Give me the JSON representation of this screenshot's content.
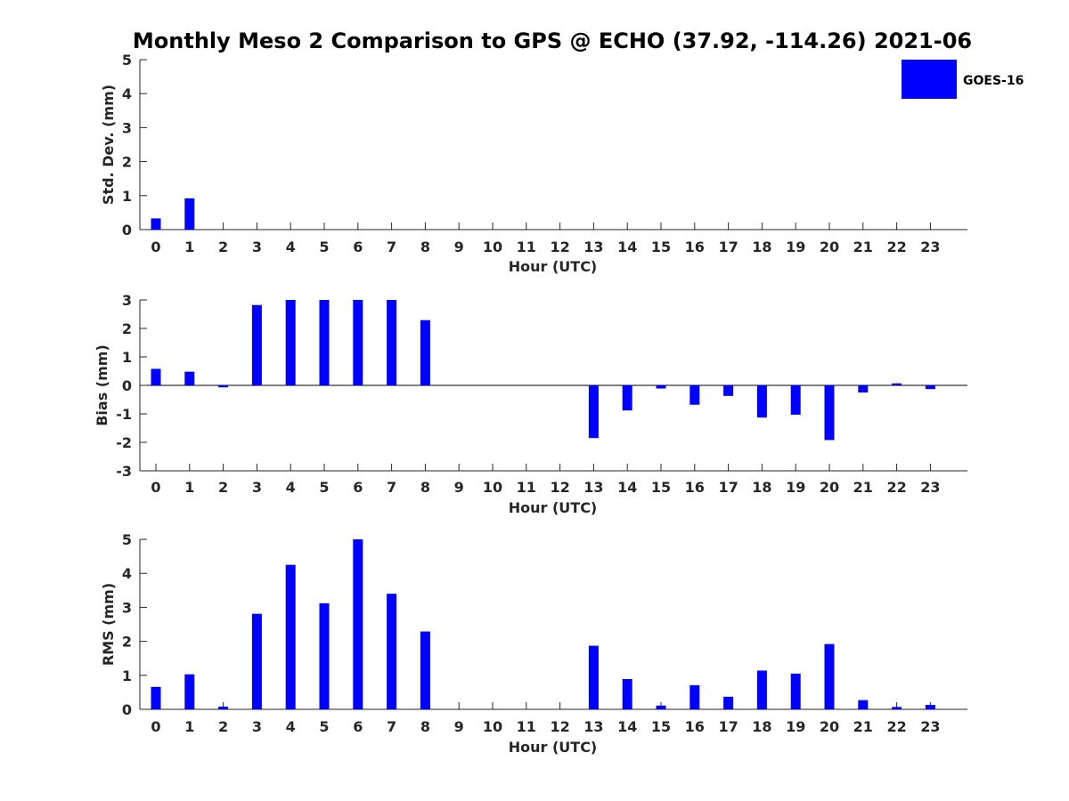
{
  "title": "Monthly Meso 2 Comparison to GPS @ ECHO (37.92, -114.26) 2021-06",
  "legend": {
    "label": "GOES-16",
    "color": "#0000ff",
    "position": "top-right"
  },
  "colors": {
    "bar": "#0000ff",
    "axis": "#262626"
  },
  "chart_data": [
    {
      "type": "bar",
      "xlabel": "Hour (UTC)",
      "ylabel": "Std. Dev. (mm)",
      "ylim": [
        0,
        5
      ],
      "yticks": [
        0,
        1,
        2,
        3,
        4,
        5
      ],
      "categories": [
        "0",
        "1",
        "2",
        "3",
        "4",
        "5",
        "6",
        "7",
        "8",
        "9",
        "10",
        "11",
        "12",
        "13",
        "14",
        "15",
        "16",
        "17",
        "18",
        "19",
        "20",
        "21",
        "22",
        "23"
      ],
      "series": [
        {
          "name": "GOES-16",
          "values": [
            0.33,
            0.92,
            0,
            0,
            0,
            0,
            0,
            0,
            0,
            0,
            0,
            0,
            0,
            0,
            0,
            0,
            0,
            0,
            0,
            0,
            0,
            0,
            0,
            0
          ]
        }
      ]
    },
    {
      "type": "bar",
      "xlabel": "Hour (UTC)",
      "ylabel": "Bias (mm)",
      "ylim": [
        -3,
        3
      ],
      "yticks": [
        -3,
        -2,
        -1,
        0,
        1,
        2,
        3
      ],
      "categories": [
        "0",
        "1",
        "2",
        "3",
        "4",
        "5",
        "6",
        "7",
        "8",
        "9",
        "10",
        "11",
        "12",
        "13",
        "14",
        "15",
        "16",
        "17",
        "18",
        "19",
        "20",
        "21",
        "22",
        "23"
      ],
      "zero_line": true,
      "series": [
        {
          "name": "GOES-16",
          "values": [
            0.58,
            0.48,
            -0.07,
            2.82,
            3.0,
            3.0,
            3.0,
            3.0,
            2.29,
            0,
            0,
            0,
            0,
            -1.85,
            -0.88,
            -0.11,
            -0.68,
            -0.37,
            -1.13,
            -1.03,
            -1.92,
            -0.25,
            0.07,
            -0.13
          ]
        }
      ]
    },
    {
      "type": "bar",
      "xlabel": "Hour (UTC)",
      "ylabel": "RMS (mm)",
      "ylim": [
        0,
        5
      ],
      "yticks": [
        0,
        1,
        2,
        3,
        4,
        5
      ],
      "categories": [
        "0",
        "1",
        "2",
        "3",
        "4",
        "5",
        "6",
        "7",
        "8",
        "9",
        "10",
        "11",
        "12",
        "13",
        "14",
        "15",
        "16",
        "17",
        "18",
        "19",
        "20",
        "21",
        "22",
        "23"
      ],
      "series": [
        {
          "name": "GOES-16",
          "values": [
            0.66,
            1.03,
            0.08,
            2.81,
            4.25,
            3.12,
            5.0,
            3.4,
            2.29,
            0,
            0,
            0,
            0,
            1.87,
            0.89,
            0.11,
            0.71,
            0.37,
            1.14,
            1.05,
            1.92,
            0.27,
            0.07,
            0.13
          ]
        }
      ]
    }
  ]
}
